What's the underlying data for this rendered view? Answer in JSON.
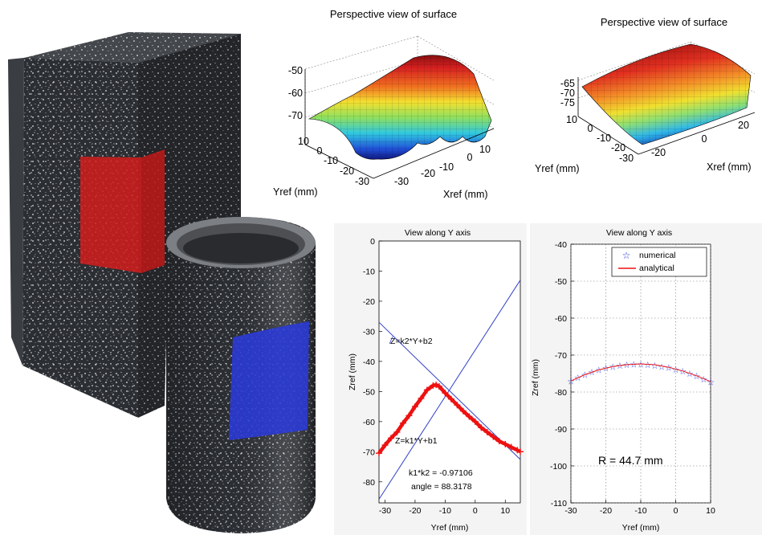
{
  "chart_data": [
    {
      "type": "surface",
      "title": "Perspective view of surface",
      "xlabel": "Xref (mm)",
      "ylabel": "Yref (mm)",
      "zticks": [
        "-50",
        "-60",
        "-70"
      ],
      "yticks": [
        "10",
        "0",
        "-10",
        "-20",
        "-30"
      ],
      "xticks": [
        "10",
        "0",
        "-10",
        "-20",
        "-30"
      ],
      "colormap": "jet"
    },
    {
      "type": "surface",
      "title": "Perspective view of surface",
      "xlabel": "Xref (mm)",
      "ylabel": "Yref (mm)",
      "zticks": [
        "-65",
        "-70",
        "-75"
      ],
      "yticks": [
        "10",
        "0",
        "-10",
        "-20",
        "-30"
      ],
      "xticks": [
        "20",
        "0",
        "-20"
      ],
      "colormap": "jet"
    },
    {
      "type": "line",
      "title": "View along Y axis",
      "xlabel": "Yref (mm)",
      "ylabel": "Zref (mm)",
      "xlim": [
        -32,
        15
      ],
      "ylim": [
        -87,
        0
      ],
      "xticks": [
        -30,
        -20,
        -10,
        0,
        10
      ],
      "yticks": [
        0,
        -10,
        -20,
        -30,
        -40,
        -50,
        -60,
        -70,
        -80
      ],
      "series": [
        {
          "label": "Z=k2*Y+b2",
          "color": "#3040c8",
          "x": [
            -32,
            15
          ],
          "y": [
            -85.8,
            -13
          ]
        },
        {
          "label": "",
          "color": "#3040c8",
          "x": [
            -32,
            15
          ],
          "y": [
            -27,
            -72.6
          ]
        },
        {
          "label": "Z=k1*Y+b1",
          "color": "#ee1111",
          "marker": "+",
          "x": [
            -32,
            -30,
            -28,
            -26,
            -24,
            -22,
            -20,
            -18,
            -16,
            -14,
            -13,
            -12,
            -10,
            -8,
            -6,
            -4,
            -2,
            0,
            2,
            4,
            6,
            8,
            10,
            12,
            14,
            15
          ],
          "y": [
            -70.5,
            -67.8,
            -65.5,
            -63.5,
            -60.5,
            -58,
            -55,
            -52.3,
            -49.5,
            -48,
            -47.8,
            -48.3,
            -50.5,
            -52.5,
            -54.5,
            -56.5,
            -58.3,
            -60,
            -62,
            -63.5,
            -65,
            -66.5,
            -67.5,
            -68.5,
            -69.5,
            -70
          ]
        }
      ],
      "annotations": [
        "k1*k2 = -0.97106",
        "angle = 88.3178"
      ]
    },
    {
      "type": "line",
      "title": "View along Y axis",
      "xlabel": "Yref (mm)",
      "ylabel": "Zref (mm)",
      "xlim": [
        -30,
        10
      ],
      "ylim": [
        -110,
        -40
      ],
      "xticks": [
        -30,
        -20,
        -10,
        0,
        10
      ],
      "yticks": [
        -40,
        -50,
        -60,
        -70,
        -80,
        -90,
        -100,
        -110
      ],
      "grid": true,
      "legend": "top-right",
      "series": [
        {
          "name": "numerical",
          "color": "#1f35d8",
          "marker": "star",
          "x": [
            -30,
            -28,
            -26,
            -24,
            -22,
            -20,
            -18,
            -16,
            -14,
            -12,
            -10,
            -8,
            -6,
            -4,
            -2,
            0,
            2,
            4,
            6,
            8,
            10
          ],
          "y": [
            -77.1,
            -76.1,
            -75.3,
            -74.6,
            -74.0,
            -73.5,
            -73.1,
            -72.8,
            -72.6,
            -72.5,
            -72.5,
            -72.6,
            -72.8,
            -73.1,
            -73.4,
            -73.9,
            -74.4,
            -75.0,
            -75.7,
            -76.5,
            -77.3
          ]
        },
        {
          "name": "analytical",
          "color": "#ee1111",
          "x": [
            -30,
            -26,
            -22,
            -18,
            -14,
            -10,
            -6,
            -2,
            2,
            6,
            10
          ],
          "y": [
            -77.0,
            -75.3,
            -74.0,
            -73.1,
            -72.6,
            -72.4,
            -72.6,
            -73.3,
            -74.3,
            -75.6,
            -77.2
          ]
        }
      ],
      "annotation": "R = 44.7 mm"
    }
  ]
}
